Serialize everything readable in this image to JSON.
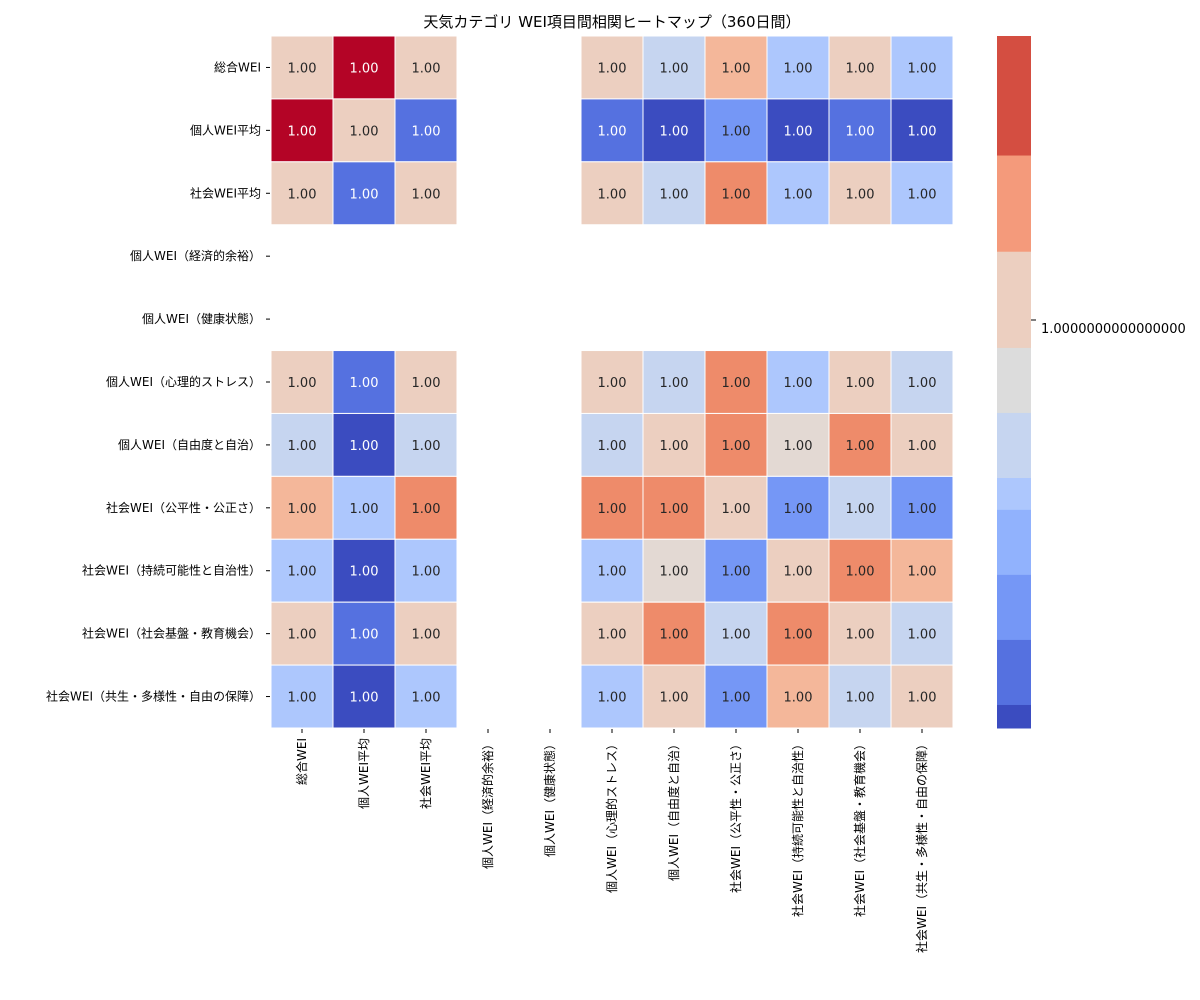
{
  "chart_data": {
    "type": "heatmap",
    "title": "天気カテゴリ WEI項目間相関ヒートマップ（360日間）",
    "row_labels": [
      "総合WEI",
      "個人WEI平均",
      "社会WEI平均",
      "個人WEI（経済的余裕）",
      "個人WEI（健康状態）",
      "個人WEI（心理的ストレス）",
      "個人WEI（自由度と自治）",
      "社会WEI（公平性・公正さ）",
      "社会WEI（持続可能性と自治性）",
      "社会WEI（社会基盤・教育機会）",
      "社会WEI（共生・多様性・自由の保障）"
    ],
    "col_labels": [
      "総合WEI",
      "個人WEI平均",
      "社会WEI平均",
      "個人WEI（経済的余裕）",
      "個人WEI（健康状態）",
      "個人WEI（心理的ストレス）",
      "個人WEI（自由度と自治）",
      "社会WEI（公平性・公正さ）",
      "社会WEI（持続可能性と自治性）",
      "社会WEI（社会基盤・教育機会）",
      "社会WEI（共生・多様性・自由の保障）"
    ],
    "annotations": [
      [
        "1.00",
        "1.00",
        "1.00",
        "",
        "",
        "1.00",
        "1.00",
        "1.00",
        "1.00",
        "1.00",
        "1.00"
      ],
      [
        "1.00",
        "1.00",
        "1.00",
        "",
        "",
        "1.00",
        "1.00",
        "1.00",
        "1.00",
        "1.00",
        "1.00"
      ],
      [
        "1.00",
        "1.00",
        "1.00",
        "",
        "",
        "1.00",
        "1.00",
        "1.00",
        "1.00",
        "1.00",
        "1.00"
      ],
      [
        "",
        "",
        "",
        "",
        "",
        "",
        "",
        "",
        "",
        "",
        ""
      ],
      [
        "",
        "",
        "",
        "",
        "",
        "",
        "",
        "",
        "",
        "",
        ""
      ],
      [
        "1.00",
        "1.00",
        "1.00",
        "",
        "",
        "1.00",
        "1.00",
        "1.00",
        "1.00",
        "1.00",
        "1.00"
      ],
      [
        "1.00",
        "1.00",
        "1.00",
        "",
        "",
        "1.00",
        "1.00",
        "1.00",
        "1.00",
        "1.00",
        "1.00"
      ],
      [
        "1.00",
        "1.00",
        "1.00",
        "",
        "",
        "1.00",
        "1.00",
        "1.00",
        "1.00",
        "1.00",
        "1.00"
      ],
      [
        "1.00",
        "1.00",
        "1.00",
        "",
        "",
        "1.00",
        "1.00",
        "1.00",
        "1.00",
        "1.00",
        "1.00"
      ],
      [
        "1.00",
        "1.00",
        "1.00",
        "",
        "",
        "1.00",
        "1.00",
        "1.00",
        "1.00",
        "1.00",
        "1.00"
      ],
      [
        "1.00",
        "1.00",
        "1.00",
        "",
        "",
        "1.00",
        "1.00",
        "1.00",
        "1.00",
        "1.00",
        "1.00"
      ]
    ],
    "color_levels": [
      [
        6,
        9,
        6,
        null,
        null,
        6,
        4,
        7,
        3,
        6,
        3
      ],
      [
        9,
        6,
        1,
        null,
        null,
        1,
        0,
        2,
        0,
        1,
        0
      ],
      [
        6,
        1,
        6,
        null,
        null,
        6,
        4,
        8,
        3,
        6,
        3
      ],
      [
        null,
        null,
        null,
        null,
        null,
        null,
        null,
        null,
        null,
        null,
        null
      ],
      [
        null,
        null,
        null,
        null,
        null,
        null,
        null,
        null,
        null,
        null,
        null
      ],
      [
        6,
        1,
        6,
        null,
        null,
        6,
        4,
        8,
        3,
        6,
        4
      ],
      [
        4,
        0,
        4,
        null,
        null,
        4,
        6,
        8,
        5,
        8,
        6
      ],
      [
        7,
        3,
        8,
        null,
        null,
        8,
        8,
        6,
        2,
        4,
        2
      ],
      [
        3,
        0,
        3,
        null,
        null,
        3,
        5,
        2,
        6,
        8,
        7
      ],
      [
        6,
        1,
        6,
        null,
        null,
        6,
        8,
        4,
        8,
        6,
        4
      ],
      [
        3,
        0,
        3,
        null,
        null,
        3,
        6,
        2,
        7,
        4,
        6
      ]
    ],
    "colorbar": {
      "tick_label": "1.0000000000000000",
      "bands_bottom_to_top": [
        {
          "color": "#3b4cc0",
          "fraction": 0.034
        },
        {
          "color": "#5571e0",
          "fraction": 0.094
        },
        {
          "color": "#7597f6",
          "fraction": 0.094
        },
        {
          "color": "#91b2fd",
          "fraction": 0.094
        },
        {
          "color": "#adc7fd",
          "fraction": 0.046
        },
        {
          "color": "#c6d5f0",
          "fraction": 0.094
        },
        {
          "color": "#dcdcdc",
          "fraction": 0.094
        },
        {
          "color": "#eccfc0",
          "fraction": 0.139
        },
        {
          "color": "#f49a7b",
          "fraction": 0.139
        },
        {
          "color": "#d44e41",
          "fraction": 0.172
        }
      ]
    },
    "palette": [
      "#3b4cc0",
      "#5571e0",
      "#7597f6",
      "#adc7fd",
      "#c6d5f0",
      "#e3d9d3",
      "#eccfc0",
      "#f4b79a",
      "#ee8b6a",
      "#b40426"
    ],
    "xlabel": "",
    "ylabel": ""
  }
}
